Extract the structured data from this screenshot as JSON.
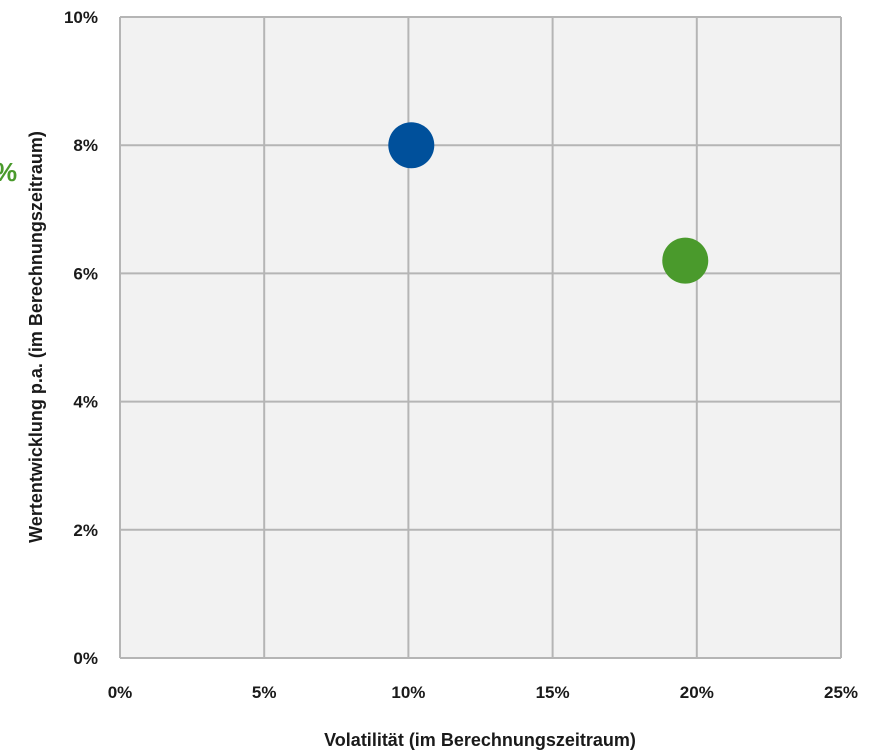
{
  "chart_data": {
    "type": "scatter",
    "title": "",
    "xlabel": "Volatilität (im Berechnungszeitraum)",
    "ylabel": "Wertentwicklung p.a. (im Berechnungszeitraum)",
    "xlim": [
      0,
      25
    ],
    "ylim": [
      0,
      10
    ],
    "x_ticks": [
      "0%",
      "5%",
      "10%",
      "15%",
      "20%",
      "25%"
    ],
    "y_ticks": [
      "0%",
      "2%",
      "4%",
      "6%",
      "8%",
      "10%"
    ],
    "grid": true,
    "background_color": "#f2f2f2",
    "grid_color": "#b5b5b5",
    "series": [
      {
        "x": 10.1,
        "y": 8.0,
        "color": "#00509b"
      },
      {
        "x": 19.6,
        "y": 6.2,
        "color": "#4a9a2c"
      }
    ],
    "partial_label": {
      "text": "%",
      "color": "#4a9a2c"
    }
  }
}
